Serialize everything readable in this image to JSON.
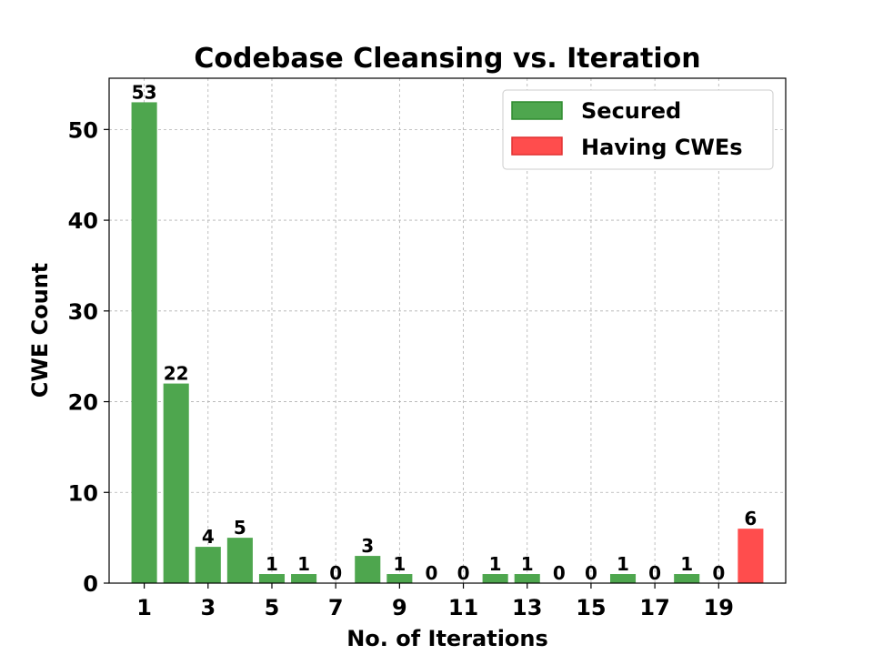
{
  "chart_data": {
    "type": "bar",
    "title": "Codebase Cleansing vs. Iteration",
    "xlabel": "No. of Iterations",
    "ylabel": "CWE Count",
    "ylim": [
      0,
      55.65
    ],
    "xlim": [
      -0.1,
      21.1
    ],
    "grid": true,
    "legend_position": "top-right",
    "x": [
      1,
      2,
      3,
      4,
      5,
      6,
      7,
      8,
      9,
      10,
      11,
      12,
      13,
      14,
      15,
      16,
      17,
      18,
      19,
      20
    ],
    "xticks": [
      "1",
      "3",
      "5",
      "7",
      "9",
      "11",
      "13",
      "15",
      "17",
      "19"
    ],
    "xtick_values": [
      1,
      3,
      5,
      7,
      9,
      11,
      13,
      15,
      17,
      19
    ],
    "yticks": [
      "0",
      "10",
      "20",
      "30",
      "40",
      "50"
    ],
    "ytick_values": [
      0,
      10,
      20,
      30,
      40,
      50
    ],
    "series": [
      {
        "name": "Secured",
        "color": "#4ea64e",
        "edge_color": "#2e8b2e",
        "values": [
          53,
          22,
          4,
          5,
          1,
          1,
          0,
          3,
          1,
          0,
          0,
          1,
          1,
          0,
          0,
          1,
          0,
          1,
          0,
          null
        ]
      },
      {
        "name": "Having CWEs",
        "color": "#ff4d4d",
        "edge_color": "#e03030",
        "values": [
          null,
          null,
          null,
          null,
          null,
          null,
          null,
          null,
          null,
          null,
          null,
          null,
          null,
          null,
          null,
          null,
          null,
          null,
          null,
          6
        ]
      }
    ]
  }
}
